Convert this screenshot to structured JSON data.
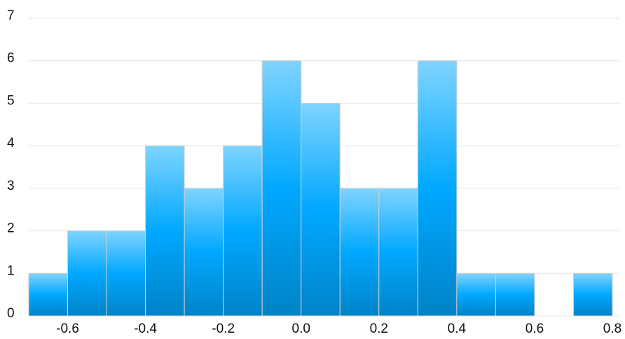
{
  "chart_data": {
    "type": "histogram",
    "bins": [
      -0.7,
      -0.6,
      -0.5,
      -0.4,
      -0.3,
      -0.2,
      -0.1,
      0,
      0.1,
      0.2,
      0.3,
      0.4,
      0.5,
      0.6,
      0.7,
      0.8
    ],
    "values": [
      1,
      2,
      2,
      4,
      3,
      4,
      6,
      5,
      3,
      3,
      6,
      1,
      1,
      0,
      1
    ],
    "color": "#00a8ff",
    "xlim": [
      -0.7,
      0.8
    ],
    "xticks": [
      -0.6,
      -0.4,
      -0.2,
      {
        "value": 0,
        "label": "0.0"
      },
      0.2,
      0.4,
      0.6,
      0.8
    ],
    "ylim": [
      0,
      7
    ],
    "yticks": [
      0,
      1,
      2,
      3,
      4,
      5,
      6,
      7
    ],
    "grid": true
  }
}
